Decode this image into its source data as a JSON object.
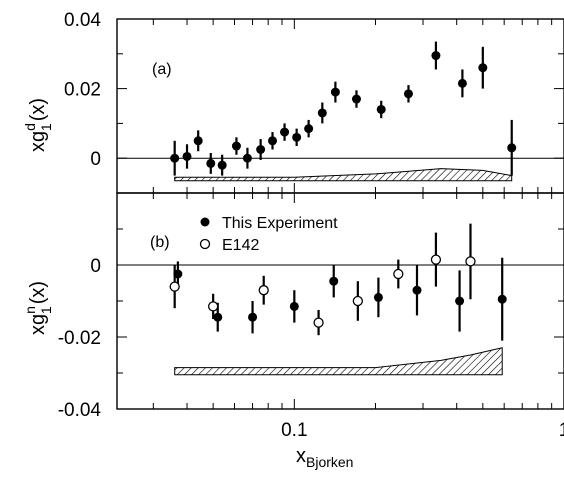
{
  "chart_data": [
    {
      "type": "scatter",
      "panel_label": "(a)",
      "ylabel_main": "xg",
      "ylabel_sup": "d",
      "ylabel_sub": "1",
      "ylabel_tail": "(x)",
      "xscale": "log",
      "xlim": [
        0.022,
        1
      ],
      "ylim": [
        -0.01,
        0.04
      ],
      "yticks": [
        0,
        0.02,
        0.04
      ],
      "ytick_labels": [
        "0",
        "0.02",
        "0.04"
      ],
      "series": [
        {
          "marker": "filled-circle",
          "points": [
            {
              "x": 0.036,
              "y": 0.0,
              "err": 0.005
            },
            {
              "x": 0.04,
              "y": 0.0005,
              "err": 0.0035
            },
            {
              "x": 0.044,
              "y": 0.005,
              "err": 0.003
            },
            {
              "x": 0.049,
              "y": -0.0015,
              "err": 0.003
            },
            {
              "x": 0.054,
              "y": -0.002,
              "err": 0.003
            },
            {
              "x": 0.061,
              "y": 0.0035,
              "err": 0.0025
            },
            {
              "x": 0.067,
              "y": 0.0,
              "err": 0.003
            },
            {
              "x": 0.075,
              "y": 0.0025,
              "err": 0.003
            },
            {
              "x": 0.083,
              "y": 0.005,
              "err": 0.0025
            },
            {
              "x": 0.092,
              "y": 0.0075,
              "err": 0.0025
            },
            {
              "x": 0.102,
              "y": 0.006,
              "err": 0.0025
            },
            {
              "x": 0.113,
              "y": 0.0085,
              "err": 0.0025
            },
            {
              "x": 0.127,
              "y": 0.013,
              "err": 0.003
            },
            {
              "x": 0.142,
              "y": 0.019,
              "err": 0.003
            },
            {
              "x": 0.17,
              "y": 0.017,
              "err": 0.0025
            },
            {
              "x": 0.21,
              "y": 0.014,
              "err": 0.0025
            },
            {
              "x": 0.265,
              "y": 0.0185,
              "err": 0.0025
            },
            {
              "x": 0.335,
              "y": 0.0295,
              "err": 0.004
            },
            {
              "x": 0.42,
              "y": 0.0215,
              "err": 0.004
            },
            {
              "x": 0.5,
              "y": 0.026,
              "err": 0.006
            },
            {
              "x": 0.64,
              "y": 0.003,
              "err": 0.008
            }
          ]
        }
      ],
      "systematic_band": {
        "x": [
          0.036,
          0.1,
          0.2,
          0.35,
          0.5,
          0.64
        ],
        "top": [
          -0.0055,
          -0.0055,
          -0.0045,
          -0.003,
          -0.0035,
          -0.005
        ],
        "bottom": [
          -0.0065,
          -0.0065,
          -0.0065,
          -0.0065,
          -0.0065,
          -0.0065
        ]
      }
    },
    {
      "type": "scatter",
      "panel_label": "(b)",
      "ylabel_main": "xg",
      "ylabel_sup": "n",
      "ylabel_sub": "1",
      "ylabel_tail": "(x)",
      "xscale": "log",
      "xlim": [
        0.022,
        1
      ],
      "ylim": [
        -0.04,
        0.02
      ],
      "yticks": [
        -0.04,
        -0.02,
        0
      ],
      "ytick_labels": [
        "-0.04",
        "-0.02",
        "0"
      ],
      "xticks": [
        0.1,
        1
      ],
      "xtick_labels": [
        "0.1",
        "1"
      ],
      "xlabel_main": "x",
      "xlabel_sub": "Bjorken",
      "legend": [
        {
          "marker": "filled-circle",
          "label": "This Experiment"
        },
        {
          "marker": "open-circle",
          "label": "E142"
        }
      ],
      "series": [
        {
          "name": "This Experiment",
          "marker": "filled-circle",
          "points": [
            {
              "x": 0.037,
              "y": -0.0025,
              "err": 0.0035
            },
            {
              "x": 0.052,
              "y": -0.0145,
              "err": 0.004
            },
            {
              "x": 0.07,
              "y": -0.0145,
              "err": 0.0045
            },
            {
              "x": 0.1,
              "y": -0.0115,
              "err": 0.0045
            },
            {
              "x": 0.14,
              "y": -0.0045,
              "err": 0.0045
            },
            {
              "x": 0.205,
              "y": -0.009,
              "err": 0.0055
            },
            {
              "x": 0.285,
              "y": -0.007,
              "err": 0.007
            },
            {
              "x": 0.41,
              "y": -0.01,
              "err": 0.0085
            },
            {
              "x": 0.59,
              "y": -0.0095,
              "err": 0.0115
            }
          ]
        },
        {
          "name": "E142",
          "marker": "open-circle",
          "points": [
            {
              "x": 0.036,
              "y": -0.006,
              "err": 0.006
            },
            {
              "x": 0.05,
              "y": -0.0115,
              "err": 0.0035
            },
            {
              "x": 0.077,
              "y": -0.007,
              "err": 0.004
            },
            {
              "x": 0.123,
              "y": -0.016,
              "err": 0.0035
            },
            {
              "x": 0.172,
              "y": -0.01,
              "err": 0.0055
            },
            {
              "x": 0.243,
              "y": -0.0025,
              "err": 0.004
            },
            {
              "x": 0.335,
              "y": 0.0015,
              "err": 0.0075
            },
            {
              "x": 0.45,
              "y": 0.001,
              "err": 0.0105
            }
          ]
        }
      ],
      "systematic_band": {
        "x": [
          0.036,
          0.1,
          0.2,
          0.35,
          0.45,
          0.59
        ],
        "top": [
          -0.0285,
          -0.0285,
          -0.0285,
          -0.0265,
          -0.025,
          -0.023
        ],
        "bottom": [
          -0.0305,
          -0.0305,
          -0.0305,
          -0.0305,
          -0.0305,
          -0.0305
        ]
      }
    }
  ]
}
